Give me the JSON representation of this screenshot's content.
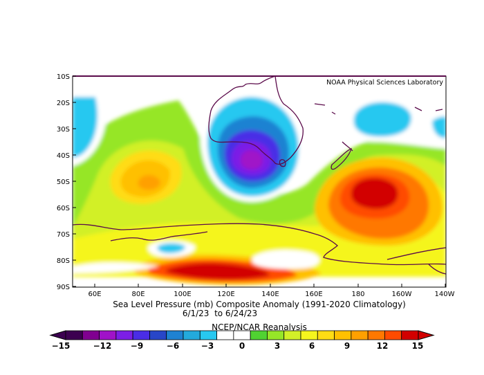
{
  "credit": "NOAA Physical Sciences Laboratory",
  "caption": {
    "line1": "Sea Level Pressure (mb) Composite Anomaly (1991-2020 Climatology)",
    "line2": "6/1/23  to 6/24/23",
    "line3": "NCEP/NCAR Reanalysis"
  },
  "lat_labels": [
    "10S",
    "20S",
    "30S",
    "40S",
    "50S",
    "60S",
    "70S",
    "80S",
    "90S"
  ],
  "lon_labels": [
    "60E",
    "80E",
    "100E",
    "120E",
    "140E",
    "160E",
    "180",
    "160W",
    "140W"
  ],
  "colorbar": {
    "tick_labels": [
      "-15",
      "-12",
      "-9",
      "-6",
      "-3",
      "0",
      "3",
      "6",
      "9",
      "12",
      "15"
    ],
    "colors": [
      "#3c0050",
      "#800090",
      "#a012c8",
      "#7c1ee6",
      "#4a2de6",
      "#2846c8",
      "#1e82d2",
      "#23aadc",
      "#28c8f0",
      "#ffffff",
      "#ffffff",
      "#50d232",
      "#96e628",
      "#d2f028",
      "#f5f51e",
      "#ffdc14",
      "#ffc000",
      "#ffa000",
      "#ff7800",
      "#ff4b00",
      "#d20000"
    ]
  }
}
